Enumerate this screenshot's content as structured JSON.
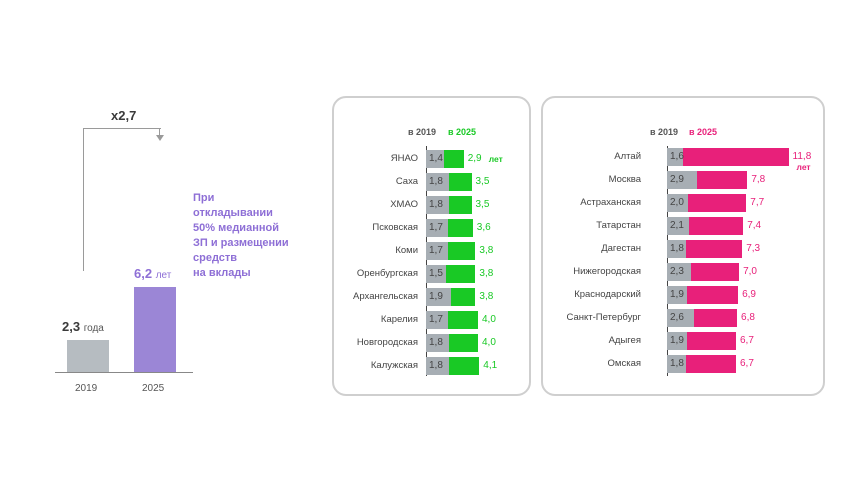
{
  "left_chart": {
    "multiplier": "x2,7",
    "bars": [
      {
        "year": "2019",
        "value": "2,3",
        "unit": "года",
        "num": 2.3,
        "color": "#b6bcc1"
      },
      {
        "year": "2025",
        "value": "6,2",
        "unit": "лет",
        "num": 6.2,
        "color": "#9b86d6"
      }
    ],
    "caption_lines": [
      "При",
      "откладывании",
      "50% медианной",
      "ЗП и размещении",
      "средств",
      "на вклады"
    ]
  },
  "chart_data": [
    {
      "type": "bar",
      "orientation": "horizontal",
      "series_labels": {
        "base": "в 2019",
        "new": "в 2025"
      },
      "unit_label": "лет",
      "colors": {
        "base": "#a7aeb4",
        "new": "#19c925"
      },
      "categories": [
        "ЯНАО",
        "Саха",
        "ХМАО",
        "Псковская",
        "Коми",
        "Оренбургская",
        "Архангельская",
        "Карелия",
        "Новгородская",
        "Калужская"
      ],
      "base_labels": [
        "1,4",
        "1,8",
        "1,8",
        "1,7",
        "1,7",
        "1,5",
        "1,9",
        "1,7",
        "1,8",
        "1,8"
      ],
      "new_labels": [
        "2,9",
        "3,5",
        "3,5",
        "3,6",
        "3,8",
        "3,8",
        "3,8",
        "4,0",
        "4,0",
        "4,1"
      ],
      "series": [
        {
          "name": "в 2019",
          "values": [
            1.4,
            1.8,
            1.8,
            1.7,
            1.7,
            1.5,
            1.9,
            1.7,
            1.8,
            1.8
          ]
        },
        {
          "name": "в 2025",
          "values": [
            2.9,
            3.5,
            3.5,
            3.6,
            3.8,
            3.8,
            3.8,
            4.0,
            4.0,
            4.1
          ]
        }
      ]
    },
    {
      "type": "bar",
      "orientation": "horizontal",
      "series_labels": {
        "base": "в 2019",
        "new": "в 2025"
      },
      "unit_label": "лет",
      "colors": {
        "base": "#a7aeb4",
        "new": "#e8207a"
      },
      "categories": [
        "Алтай",
        "Москва",
        "Астраханская",
        "Татарстан",
        "Дагестан",
        "Нижегородская",
        "Краснодарский",
        "Санкт-Петербург",
        "Адыгея",
        "Омская"
      ],
      "base_labels": [
        "1,6",
        "2,9",
        "2,0",
        "2,1",
        "1,8",
        "2,3",
        "1,9",
        "2,6",
        "1,9",
        "1,8"
      ],
      "new_labels": [
        "11,8",
        "7,8",
        "7,7",
        "7,4",
        "7,3",
        "7,0",
        "6,9",
        "6,8",
        "6,7",
        "6,7"
      ],
      "series": [
        {
          "name": "в 2019",
          "values": [
            1.6,
            2.9,
            2.0,
            2.1,
            1.8,
            2.3,
            1.9,
            2.6,
            1.9,
            1.8
          ]
        },
        {
          "name": "в 2025",
          "values": [
            11.8,
            7.8,
            7.7,
            7.4,
            7.3,
            7.0,
            6.9,
            6.8,
            6.7,
            6.7
          ]
        }
      ]
    }
  ]
}
